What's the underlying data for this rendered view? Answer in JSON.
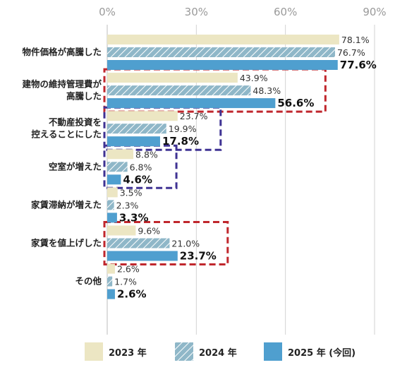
{
  "chart_data": {
    "type": "bar",
    "orientation": "horizontal",
    "categories": [
      [
        "物件価格が高騰した"
      ],
      [
        "建物の維持管理費が",
        "高騰した"
      ],
      [
        "不動産投資を",
        "控えることにした"
      ],
      [
        "空室が増えた"
      ],
      [
        "家賃滞納が増えた"
      ],
      [
        "家賃を値上げした"
      ],
      [
        "その他"
      ]
    ],
    "series": [
      {
        "name": "2023 年",
        "values": [
          78.1,
          43.9,
          23.7,
          8.8,
          3.5,
          9.6,
          2.6
        ],
        "labels": [
          "78.1%",
          "43.9%",
          "23.7%",
          "8.8%",
          "3.5%",
          "9.6%",
          "2.6%"
        ],
        "color": "#ece6c3",
        "pattern": "solid"
      },
      {
        "name": "2024 年",
        "values": [
          76.7,
          48.3,
          19.9,
          6.8,
          2.3,
          21.0,
          1.7
        ],
        "labels": [
          "76.7%",
          "48.3%",
          "19.9%",
          "6.8%",
          "2.3%",
          "21.0%",
          "1.7%"
        ],
        "color": "#8fb7c8",
        "pattern": "hatch"
      },
      {
        "name": "2025 年 (今回)",
        "values": [
          77.6,
          56.6,
          17.8,
          4.6,
          3.3,
          23.7,
          2.6
        ],
        "labels": [
          "77.6%",
          "56.6%",
          "17.8%",
          "4.6%",
          "3.3%",
          "23.7%",
          "2.6%"
        ],
        "color": "#4f9fcf",
        "pattern": "solid",
        "bold_labels": true
      }
    ],
    "xticks": [
      "0%",
      "30%",
      "60%",
      "90%"
    ],
    "xlim": [
      0,
      90
    ],
    "grid": true,
    "legend": "bottom",
    "highlights": [
      {
        "categories": [
          1
        ],
        "color": "#c0272d",
        "style": "dashed"
      },
      {
        "categories": [
          2
        ],
        "color": "#3f3293",
        "style": "dashed"
      },
      {
        "categories": [
          3
        ],
        "color": "#3f3293",
        "style": "dashed"
      },
      {
        "categories": [
          5
        ],
        "color": "#c0272d",
        "style": "dashed"
      }
    ]
  }
}
